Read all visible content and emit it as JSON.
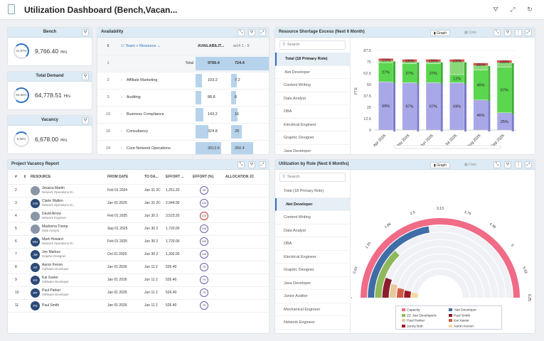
{
  "app": {
    "title": "Utilization Dashboard (Bench,Vacan..."
  },
  "kpis": {
    "bench": {
      "title": "Bench",
      "pct": "41.97%",
      "value": "9,766.40",
      "unit": "Hrs"
    },
    "demand": {
      "title": "Total Demand",
      "pct": "54.08%",
      "value": "64,778.51",
      "unit": "Hrs"
    },
    "vacancy": {
      "title": "Vacancy",
      "pct": "6.55%",
      "value": "6,678.00",
      "unit": "Hrs"
    }
  },
  "availability": {
    "title": "Availability",
    "group_label": "Team + Resource",
    "col_avail": "AVAILABILIT...",
    "col_w14": "w14 1 - 5",
    "rows": [
      {
        "num": "1",
        "name": "",
        "total_label": "Total",
        "avail": "9766.4",
        "avail_frac": 1.0,
        "w14": "724.4"
      },
      {
        "num": "2",
        "name": "Affiliate Marketing",
        "total_label": "",
        "avail": "103.2",
        "avail_frac": 0.18,
        "w14": "7.2"
      },
      {
        "num": "3",
        "name": "Auditing",
        "total_label": "",
        "avail": "88.8",
        "avail_frac": 0.16,
        "w14": "8"
      },
      {
        "num": "10",
        "name": "Business Compliance",
        "total_label": "",
        "avail": "143.2",
        "avail_frac": 0.22,
        "w14": "16"
      },
      {
        "num": "16",
        "name": "Consultancy",
        "total_label": "",
        "avail": "324.8",
        "avail_frac": 0.35,
        "w14": "28"
      },
      {
        "num": "24",
        "name": "Core Network Operations",
        "total_label": "",
        "avail": "3013.6",
        "avail_frac": 0.72,
        "w14": "260.4"
      }
    ]
  },
  "shortage": {
    "title": "Resource Shortage  Excess (Next 6 Month)",
    "toggle_graph": "Graph",
    "toggle_data": "Data",
    "search_placeholder": "Search",
    "categories": [
      "Total (18 Primary Role)",
      ".Net Developer",
      "Content Writing",
      "Data Analyst",
      "DBA",
      "Electrical Engineer",
      "Graphic Designer",
      "Java Developer"
    ],
    "selected_index": 0
  },
  "utilization": {
    "title": "Utilization by Role (Next 6 Months)",
    "toggle_graph": "Graph",
    "toggle_data": "Data",
    "search_placeholder": "Search",
    "categories": [
      "Total (18 Primary Role)",
      ".Net Developer",
      "Content Writing",
      "Data Analyst",
      "DBA",
      "Electrical Engineer",
      "Graphic Designer",
      "Java Developer",
      "Junior Auditor",
      "Mechanical Engineer",
      "Network Engineer"
    ],
    "selected_index": 1
  },
  "vacancy_report": {
    "title": "Project Vacancy Report",
    "columns": [
      "#",
      "RESOURCE",
      "FROM DATE",
      "TO DA...",
      "EFFORT ...",
      "EFFORT (%)",
      "ALLOCATION JC"
    ],
    "rows": [
      {
        "num": "2",
        "initials": "",
        "name": "Jessica Martin",
        "role": "Network Operations M...",
        "from": "Feb 01 2024",
        "to": "Jan 31 2C",
        "effort": "1,251.20",
        "pct": "20",
        "over": false
      },
      {
        "num": "3",
        "initials": "CW",
        "name": "Clarie Walton",
        "role": "Network Operations M...",
        "from": "Jan 01 2025",
        "to": "Jan 31 2C",
        "effort": "2,944.00",
        "pct": "100",
        "over": false
      },
      {
        "num": "4",
        "initials": "",
        "name": "David Arrow",
        "role": "Network Engineer",
        "from": "Feb 01 2025",
        "to": "Jun 30 2",
        "effort": "3,523.20",
        "pct": "120",
        "over": true
      },
      {
        "num": "5",
        "initials": "",
        "name": "Madonna Tramp",
        "role": "Data Analyst",
        "from": "Sep 01 2025",
        "to": "Jun 30 2",
        "effort": "1,720.00",
        "pct": "100",
        "over": false
      },
      {
        "num": "6",
        "initials": "MH",
        "name": "Mark Howard",
        "role": "Network Operations M...",
        "from": "Feb 01 2025",
        "to": "Jun 30 2",
        "effort": "1,720.00",
        "pct": "100",
        "over": false
      },
      {
        "num": "7",
        "initials": "JM",
        "name": "Joe Markus",
        "role": "Graphic Designer",
        "from": "Oct 01 2025",
        "to": "Jun 30 2",
        "effort": "1,392.00",
        "pct": "100",
        "over": false
      },
      {
        "num": "8",
        "initials": "AK",
        "name": "Aaron Kenon",
        "role": "Software Developer",
        "from": "Jan 01 2026",
        "to": "Jun 11 2",
        "effort": "526.40",
        "pct": "70",
        "over": false
      },
      {
        "num": "9",
        "initials": "KX",
        "name": "Kai Xavier",
        "role": "Software Developer",
        "from": "Jan 01 2026",
        "to": "Jun 11 2",
        "effort": "526.40",
        "pct": "70",
        "over": false
      },
      {
        "num": "10",
        "initials": "PP",
        "name": "Paul Parker",
        "role": "Software Developer",
        "from": "Jan 01 2026",
        "to": "Jun 11 2",
        "effort": "526.40",
        "pct": "70",
        "over": false
      },
      {
        "num": "11",
        "initials": "PS",
        "name": "Paul Smith",
        "role": "",
        "from": "Jan 01 2026",
        "to": "Jun 11 2",
        "effort": "526.40",
        "pct": "70",
        "over": false
      }
    ]
  },
  "chart_data": [
    {
      "type": "bar",
      "categories": [
        "Apr 2026",
        "May 2026",
        "Jun 2026",
        "Jul 2026",
        "Aug 2026",
        "Sep 2026"
      ],
      "ylabel": "FTE",
      "ylim": [
        0,
        87.5
      ],
      "yticks": [
        "0",
        "12.5",
        "25",
        "37.5",
        "50",
        "62.5",
        "75",
        "87.5"
      ],
      "series": [
        {
          "values": [
            53,
            52,
            52,
            52,
            33,
            19
          ],
          "labels": [
            "69%",
            "67%",
            "67%",
            "69%",
            "46%",
            "25%"
          ],
          "color": "#a8a8e8"
        },
        {
          "values": [
            21,
            21,
            21,
            9,
            33,
            50
          ],
          "labels": [
            "27%",
            "27%",
            "27%",
            "12%",
            "46%",
            "67%"
          ],
          "color": "#5bd64f"
        },
        {
          "values": [
            3,
            3,
            3,
            15,
            6,
            6
          ],
          "labels": [
            "",
            "",
            "",
            "",
            "",
            ""
          ],
          "color": "#8bd87b"
        }
      ],
      "top_labels": [
        "100%",
        "100%",
        "100%",
        "100%",
        "100%",
        "100%"
      ]
    },
    {
      "type": "radial-bar",
      "axis_ticks": [
        "0",
        "0.63",
        "1.25",
        "1.88",
        "2.5",
        "3.13",
        "3.75",
        "4.38",
        "5",
        "5.63",
        "6.25"
      ],
      "max": 6.25,
      "series": [
        {
          "name": "Capacity",
          "value": 6.25,
          "color": "#f06b86"
        },
        {
          "name": ".Net Developer",
          "value": 2.8,
          "color": "#3f6da8"
        },
        {
          "name": "ZZ .Net Developers",
          "value": 1.6,
          "color": "#8fb85a"
        },
        {
          "name": "Paul Smith",
          "value": 0.7,
          "color": "#8b1c2c"
        },
        {
          "name": "Paul Parker",
          "value": 0.55,
          "color": "#e8c99b"
        },
        {
          "name": "Kai Xavier",
          "value": 0.45,
          "color": "#d05a46"
        },
        {
          "name": "Jenny Bob",
          "value": 0.4,
          "color": "#9b1a28"
        },
        {
          "name": "Aaron Kenon",
          "value": 0.35,
          "color": "#f5d9a0"
        }
      ]
    }
  ]
}
